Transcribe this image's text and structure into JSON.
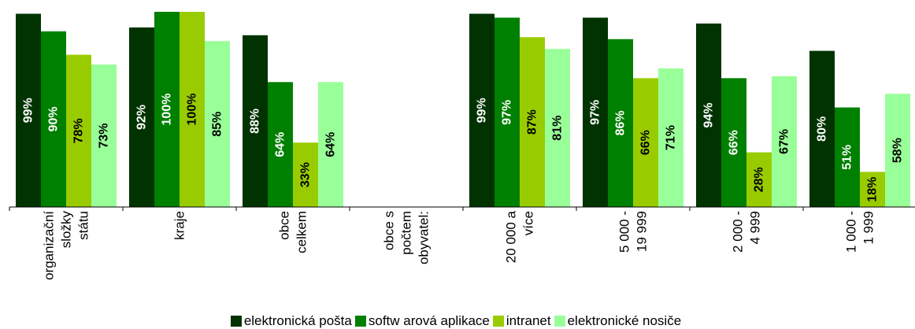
{
  "chart_data": {
    "type": "bar",
    "categories": [
      [
        "organizační",
        "složky",
        "státu"
      ],
      [
        "kraje"
      ],
      [
        "obce",
        "celkem"
      ],
      [
        "obce s",
        "počtem",
        "obyvatel:"
      ],
      [
        "20 000 a",
        "více"
      ],
      [
        "5 000 -",
        "19 999"
      ],
      [
        "2 000 -",
        "4 999"
      ],
      [
        "1 000 -",
        "1 999"
      ]
    ],
    "series": [
      {
        "name": "elektronická pošta",
        "color": "#003300",
        "values": [
          99,
          92,
          88,
          null,
          99,
          97,
          94,
          80
        ],
        "labels": [
          "99%",
          "92%",
          "88%",
          "",
          "99%",
          "97%",
          "94%",
          "80%"
        ]
      },
      {
        "name": "softw arová aplikace",
        "color": "#008000",
        "values": [
          90,
          100,
          64,
          null,
          97,
          86,
          66,
          51
        ],
        "labels": [
          "90%",
          "100%",
          "64%",
          "",
          "97%",
          "86%",
          "66%",
          "51%"
        ]
      },
      {
        "name": "intranet",
        "color": "#99CC00",
        "values": [
          78,
          100,
          33,
          null,
          87,
          66,
          28,
          18
        ],
        "labels": [
          "78%",
          "100%",
          "33%",
          "",
          "87%",
          "66%",
          "28%",
          "18%"
        ]
      },
      {
        "name": "elektronické nosiče",
        "color": "#99FF99",
        "values": [
          73,
          85,
          64,
          null,
          81,
          71,
          67,
          58
        ],
        "labels": [
          "73%",
          "85%",
          "64%",
          "",
          "81%",
          "71%",
          "67%",
          "58%"
        ]
      }
    ],
    "ylim": [
      0,
      100
    ],
    "legend_position": "bottom",
    "grid": false
  }
}
